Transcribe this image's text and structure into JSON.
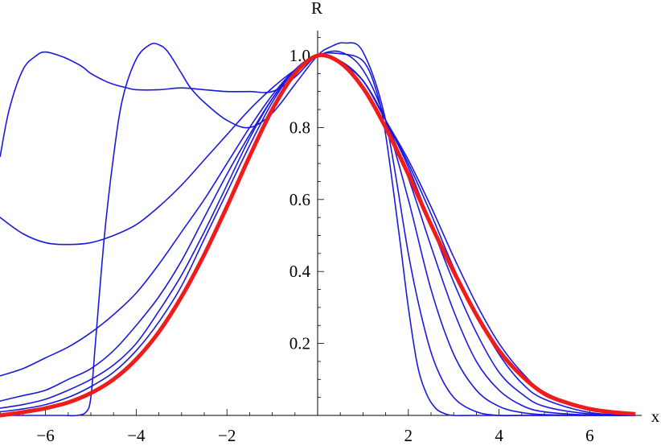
{
  "chart_data": {
    "type": "line",
    "title": "",
    "xlabel": "x",
    "ylabel": "R",
    "xlim": [
      -7,
      7
    ],
    "ylim": [
      0,
      1.05
    ],
    "x_ticks": [
      -6,
      -4,
      -2,
      2,
      4,
      6
    ],
    "x_tick_labels": [
      "−6",
      "−4",
      "−2",
      "2",
      "4",
      "6"
    ],
    "y_ticks": [
      0.2,
      0.4,
      0.6,
      0.8,
      1.0
    ],
    "y_tick_labels": [
      "0.2",
      "0.4",
      "0.6",
      "0.8",
      "1.0"
    ],
    "grid": false,
    "colors": {
      "thin": "#1a1adf",
      "thick": "#ee1c1c"
    },
    "series": [
      {
        "style": "thin",
        "x": [
          -7,
          -6.8,
          -6.5,
          -6.2,
          -6,
          -5.7,
          -5.5,
          -5.2,
          -5,
          -4.7,
          -4.5,
          -4.2,
          -4,
          -3.5,
          -3,
          -2.5,
          -2,
          -1.5,
          -1,
          -0.5,
          0,
          0.5,
          1,
          1.3,
          1.5,
          1.8,
          2,
          2.2,
          2.4,
          2.6,
          2.8,
          3,
          3.5,
          4,
          5,
          6,
          7
        ],
        "y": [
          0.72,
          0.85,
          0.96,
          1.0,
          1.01,
          1.0,
          0.99,
          0.97,
          0.95,
          0.93,
          0.92,
          0.91,
          0.905,
          0.905,
          0.91,
          0.905,
          0.9,
          0.9,
          0.9,
          0.94,
          1.0,
          1.005,
          0.985,
          0.9,
          0.78,
          0.5,
          0.3,
          0.14,
          0.06,
          0.02,
          0.005,
          0.0,
          0,
          0,
          0,
          0,
          0
        ]
      },
      {
        "style": "thin",
        "x": [
          -7,
          -6,
          -5.6,
          -5.3,
          -5.1,
          -5,
          -4.9,
          -4.7,
          -4.5,
          -4.3,
          -4,
          -3.7,
          -3.5,
          -3.3,
          -3,
          -2.8,
          -2.5,
          -2,
          -1.5,
          -1,
          -0.5,
          0,
          0.3,
          0.6,
          1,
          1.5,
          2,
          2.3,
          2.6,
          3,
          3.5,
          4,
          4.5,
          5,
          6,
          7
        ],
        "y": [
          0,
          0,
          0,
          0,
          0.01,
          0.05,
          0.2,
          0.5,
          0.72,
          0.88,
          0.99,
          1.03,
          1.03,
          1.01,
          0.95,
          0.91,
          0.87,
          0.82,
          0.8,
          0.84,
          0.92,
          1.0,
          1.025,
          1.035,
          1.01,
          0.82,
          0.45,
          0.27,
          0.14,
          0.05,
          0.01,
          0,
          0,
          0,
          0,
          0
        ]
      },
      {
        "style": "thin",
        "x": [
          -7,
          -6.5,
          -6,
          -5.5,
          -5,
          -4.5,
          -4,
          -3.5,
          -3,
          -2.5,
          -2,
          -1.5,
          -1,
          -0.5,
          0,
          0.5,
          1,
          1.5,
          2,
          2.5,
          3,
          3.5,
          4,
          4.5,
          5,
          6,
          7
        ],
        "y": [
          0.55,
          0.505,
          0.48,
          0.475,
          0.48,
          0.5,
          0.53,
          0.58,
          0.64,
          0.71,
          0.78,
          0.85,
          0.91,
          0.96,
          1.0,
          1.01,
          0.96,
          0.82,
          0.6,
          0.35,
          0.17,
          0.07,
          0.025,
          0.008,
          0.002,
          0,
          0
        ]
      },
      {
        "style": "thin",
        "x": [
          -7,
          -6.5,
          -6,
          -5.5,
          -5,
          -4.5,
          -4,
          -3.5,
          -3,
          -2.5,
          -2,
          -1.5,
          -1,
          -0.5,
          0,
          0.5,
          1,
          1.5,
          2,
          2.5,
          3,
          3.5,
          4,
          4.5,
          5,
          6,
          7
        ],
        "y": [
          0.11,
          0.13,
          0.16,
          0.19,
          0.23,
          0.28,
          0.34,
          0.42,
          0.51,
          0.6,
          0.7,
          0.8,
          0.89,
          0.96,
          1.0,
          0.985,
          0.93,
          0.82,
          0.66,
          0.47,
          0.29,
          0.15,
          0.07,
          0.028,
          0.01,
          0.001,
          0
        ]
      },
      {
        "style": "thin",
        "x": [
          -7,
          -6.5,
          -6,
          -5.5,
          -5,
          -4.5,
          -4,
          -3.5,
          -3,
          -2.5,
          -2,
          -1.5,
          -1,
          -0.5,
          0,
          0.5,
          1,
          1.5,
          2,
          2.5,
          3,
          3.5,
          4,
          4.5,
          5,
          6,
          7
        ],
        "y": [
          0.04,
          0.055,
          0.07,
          0.1,
          0.13,
          0.18,
          0.25,
          0.33,
          0.43,
          0.55,
          0.67,
          0.78,
          0.88,
          0.96,
          1.0,
          0.98,
          0.93,
          0.82,
          0.69,
          0.53,
          0.37,
          0.23,
          0.12,
          0.06,
          0.025,
          0.004,
          0
        ]
      },
      {
        "style": "thin",
        "x": [
          -7,
          -6.5,
          -6,
          -5.5,
          -5,
          -4.5,
          -4,
          -3.5,
          -3,
          -2.5,
          -2,
          -1.5,
          -1,
          -0.5,
          0,
          0.5,
          1,
          1.5,
          2,
          2.5,
          3,
          3.5,
          4,
          4.5,
          5,
          6,
          7
        ],
        "y": [
          0.02,
          0.03,
          0.045,
          0.07,
          0.1,
          0.14,
          0.2,
          0.29,
          0.39,
          0.51,
          0.64,
          0.77,
          0.88,
          0.96,
          1.0,
          0.98,
          0.93,
          0.82,
          0.7,
          0.56,
          0.41,
          0.28,
          0.17,
          0.09,
          0.045,
          0.008,
          0.001
        ]
      },
      {
        "style": "thin",
        "x": [
          -7,
          -6.5,
          -6,
          -5.5,
          -5,
          -4.5,
          -4,
          -3.5,
          -3,
          -2.5,
          -2,
          -1.5,
          -1,
          -0.5,
          0,
          0.5,
          1,
          1.5,
          2,
          2.5,
          3,
          3.5,
          4,
          4.5,
          5,
          6,
          7
        ],
        "y": [
          0.01,
          0.018,
          0.03,
          0.05,
          0.08,
          0.12,
          0.18,
          0.26,
          0.36,
          0.49,
          0.62,
          0.75,
          0.87,
          0.96,
          1.0,
          0.98,
          0.93,
          0.82,
          0.71,
          0.58,
          0.44,
          0.31,
          0.2,
          0.12,
          0.065,
          0.015,
          0.002
        ]
      },
      {
        "style": "thick",
        "x": [
          -7,
          -6.5,
          -6,
          -5.5,
          -5,
          -4.5,
          -4,
          -3.5,
          -3,
          -2.5,
          -2,
          -1.5,
          -1,
          -0.5,
          0,
          0.5,
          1,
          1.5,
          2,
          2.5,
          3,
          3.5,
          4,
          4.5,
          5,
          5.5,
          6,
          6.5,
          7
        ],
        "y": [
          0.0,
          0.009,
          0.02,
          0.036,
          0.062,
          0.1,
          0.156,
          0.232,
          0.33,
          0.447,
          0.58,
          0.72,
          0.85,
          0.95,
          1.0,
          0.98,
          0.91,
          0.8,
          0.67,
          0.53,
          0.4,
          0.28,
          0.18,
          0.11,
          0.06,
          0.035,
          0.018,
          0.009,
          0.004
        ]
      }
    ]
  }
}
